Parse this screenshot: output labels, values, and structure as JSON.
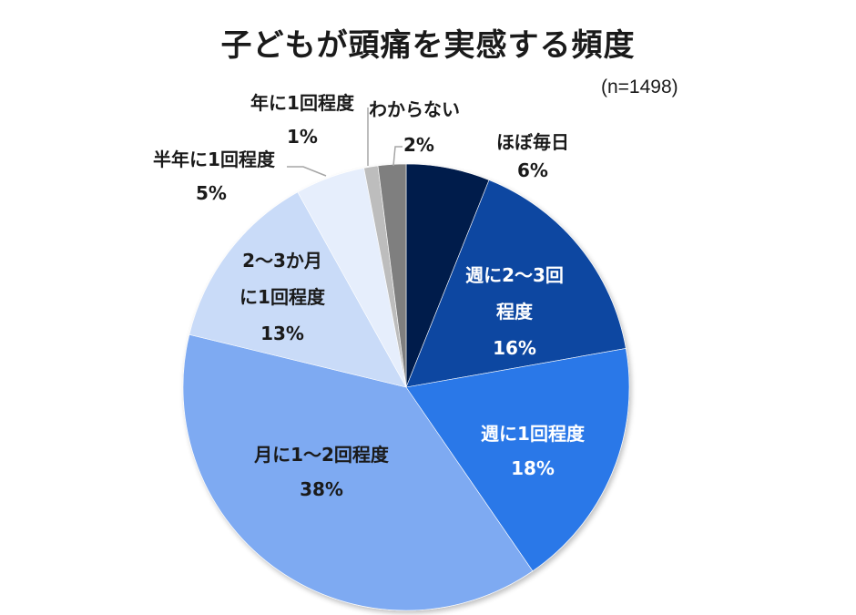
{
  "chart_data": {
    "type": "pie",
    "title": "子どもが頭痛を実感する頻度",
    "subtitle": "(n=1498)",
    "direction": "clockwise from 12 o'clock",
    "categories": [
      "ほぼ毎日",
      "週に2〜3回程度",
      "週に1回程度",
      "月に1〜2回程度",
      "2〜3か月に1回程度",
      "半年に1回程度",
      "年に1回程度",
      "わからない"
    ],
    "values": [
      6,
      16,
      18,
      38,
      13,
      5,
      1,
      2
    ],
    "value_labels": [
      "6%",
      "16%",
      "18%",
      "38%",
      "13%",
      "5%",
      "1%",
      "2%"
    ],
    "colors": [
      "#031a4b",
      "#0d47a1",
      "#2c78e8",
      "#7eaaf2",
      "#c9dbf8",
      "#e6eefc",
      "#bdbdbd",
      "#7f7f7f"
    ],
    "legend": "none (data labels on/near slices)"
  },
  "title": "子どもが頭痛を実感する頻度",
  "n_label": "(n=1498)",
  "labels": {
    "daily": {
      "line1": "ほぼ毎日",
      "pct": "6%"
    },
    "weekly23": {
      "line1": "週に2〜3回",
      "line2": "程度",
      "pct": "16%"
    },
    "weekly1": {
      "line1": "週に1回程度",
      "pct": "18%"
    },
    "monthly12": {
      "line1": "月に1〜2回程度",
      "pct": "38%"
    },
    "months23": {
      "line1": "2〜3か月",
      "line2": "に1回程度",
      "pct": "13%"
    },
    "halfyear": {
      "line1": "半年に1回程度",
      "pct": "5%"
    },
    "yearly": {
      "line1": "年に1回程度",
      "pct": "1%"
    },
    "unknown": {
      "line1": "わからない",
      "pct": "2%"
    }
  }
}
